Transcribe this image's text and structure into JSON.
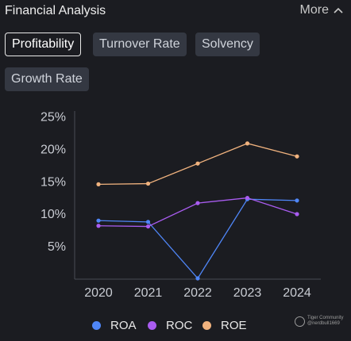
{
  "header": {
    "title": "Financial Analysis",
    "more_label": "More",
    "more_icon": "chevron-up-icon"
  },
  "tabs": [
    {
      "label": "Profitability",
      "active": true
    },
    {
      "label": "Turnover Rate",
      "active": false
    },
    {
      "label": "Solvency",
      "active": false
    },
    {
      "label": "Growth Rate",
      "active": false
    }
  ],
  "chart_data": {
    "type": "line",
    "x": [
      "2020",
      "2021",
      "2022",
      "2023",
      "2024"
    ],
    "y_ticks": [
      "25%",
      "20%",
      "15%",
      "10%",
      "5%"
    ],
    "ylim": [
      0,
      26
    ],
    "grid": false,
    "legend_position": "bottom",
    "series": [
      {
        "name": "ROA",
        "color": "#4f86f7",
        "values": [
          8.9,
          8.7,
          0.0,
          12.2,
          12.0
        ]
      },
      {
        "name": "ROC",
        "color": "#a95cf0",
        "values": [
          8.1,
          8.0,
          11.6,
          12.4,
          9.9
        ]
      },
      {
        "name": "ROE",
        "color": "#f0b27e",
        "values": [
          14.5,
          14.6,
          17.7,
          20.8,
          18.8
        ]
      }
    ]
  },
  "watermark": {
    "brand": "Tiger Community",
    "handle": "@nerdbull1669"
  }
}
